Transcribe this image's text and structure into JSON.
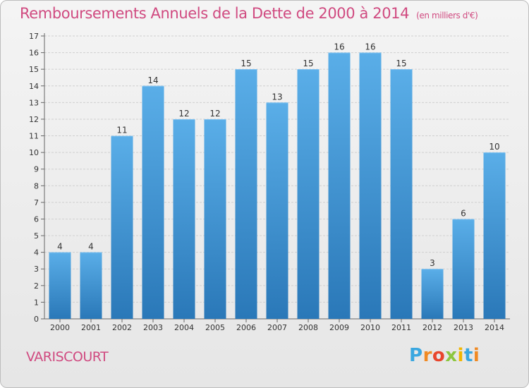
{
  "header": {
    "title": "Remboursements Annuels de la Dette de 2000 à 2014",
    "unit": "(en milliers d'€)"
  },
  "footer": {
    "commune": "VARISCOURT",
    "logo_letters": [
      "P",
      "r",
      "o",
      "x",
      "i",
      "t",
      "i"
    ]
  },
  "colors": {
    "title": "#d04a80",
    "bar_top": "#5aaee8",
    "bar_bottom": "#2a78b8",
    "grid": "#d0d0d0"
  },
  "chart_data": {
    "type": "bar",
    "title": "Remboursements Annuels de la Dette de 2000 à 2014",
    "xlabel": "",
    "ylabel": "",
    "categories": [
      "2000",
      "2001",
      "2002",
      "2003",
      "2004",
      "2005",
      "2006",
      "2007",
      "2008",
      "2009",
      "2010",
      "2011",
      "2012",
      "2013",
      "2014"
    ],
    "values": [
      4,
      4,
      11,
      14,
      12,
      12,
      15,
      13,
      15,
      16,
      16,
      15,
      3,
      6,
      10
    ],
    "ylim": [
      0,
      17
    ],
    "yticks": [
      0,
      1,
      2,
      3,
      4,
      5,
      6,
      7,
      8,
      9,
      10,
      11,
      12,
      13,
      14,
      15,
      16,
      17
    ],
    "grid": true,
    "data_labels": true
  }
}
